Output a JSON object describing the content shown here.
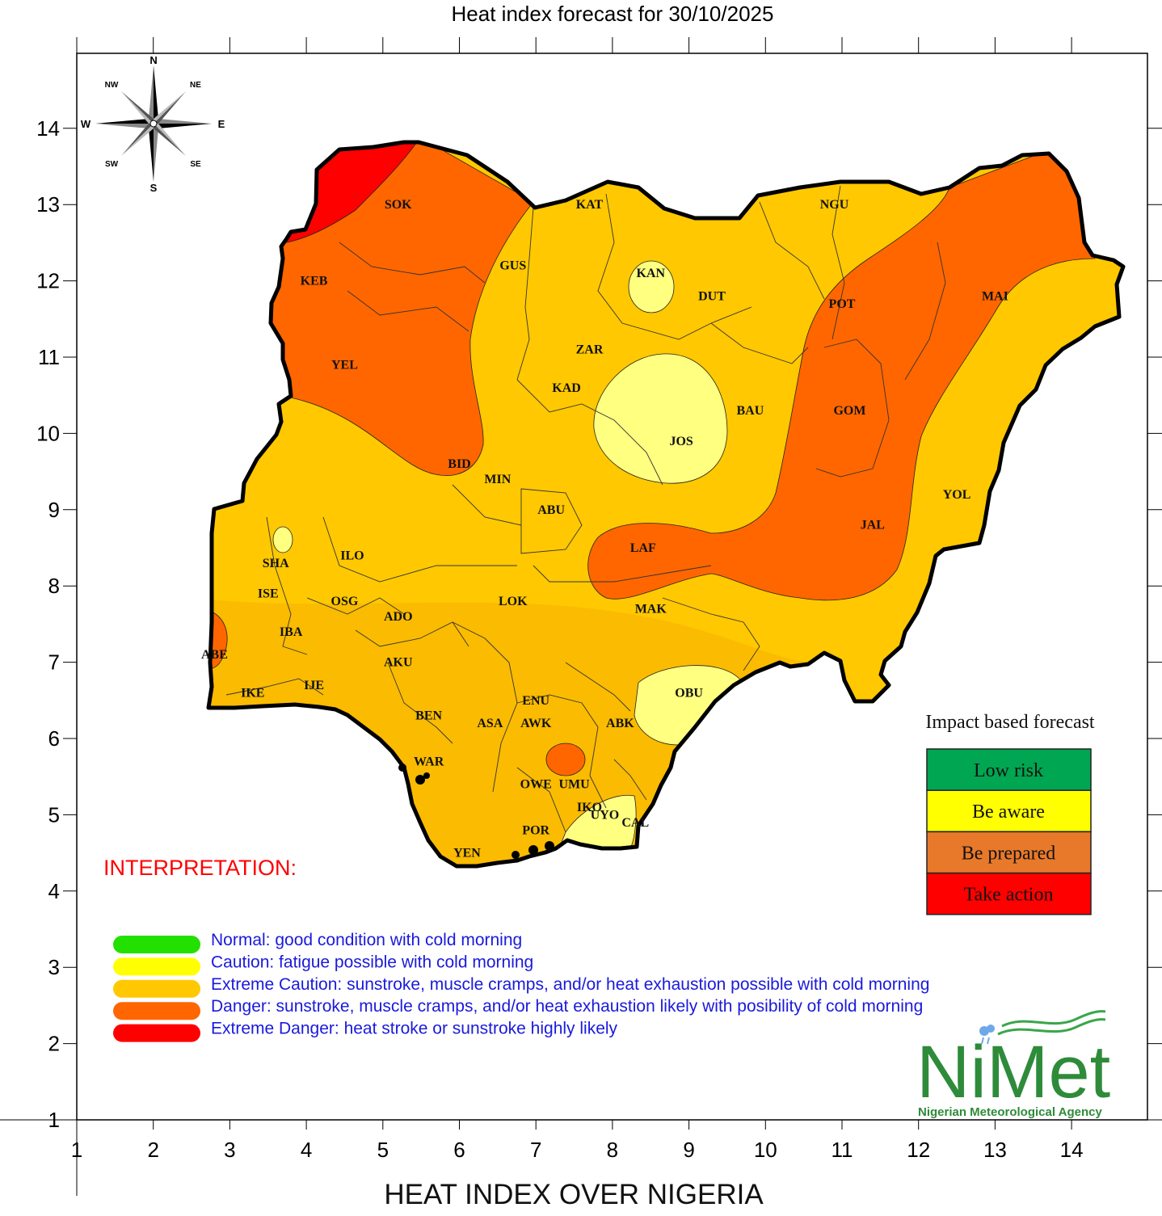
{
  "title": "Heat index forecast for 30/10/2025",
  "footer_title": "HEAT INDEX OVER NIGERIA",
  "axes": {
    "x_ticks": [
      "1",
      "2",
      "3",
      "4",
      "5",
      "6",
      "7",
      "8",
      "9",
      "10",
      "11",
      "12",
      "13",
      "14"
    ],
    "y_ticks": [
      "14",
      "13",
      "12",
      "11",
      "10",
      "9",
      "8",
      "7",
      "6",
      "5",
      "4",
      "3",
      "2",
      "1"
    ],
    "x_range": [
      1,
      15
    ],
    "y_range": [
      1,
      15
    ]
  },
  "compass": {
    "n": "N",
    "s": "S",
    "e": "E",
    "w": "W",
    "ne": "NE",
    "nw": "NW",
    "se": "SE",
    "sw": "SW"
  },
  "colors": {
    "normal": "#22e000",
    "caution": "#ffff60",
    "extreme_caution": "#ffc800",
    "danger": "#ff6600",
    "extreme_danger": "#ff0000",
    "low_risk": "#00a651",
    "be_aware": "#ffff00",
    "be_prepared": "#e8792a",
    "take_action": "#ff0000",
    "legend_text": "#1a1adc",
    "interp_title": "#ff0000",
    "nimet_green": "#2e8b3a"
  },
  "cities": [
    {
      "name": "SOK",
      "lon": 5.2,
      "lat": 13.0
    },
    {
      "name": "KAT",
      "lon": 7.7,
      "lat": 13.0
    },
    {
      "name": "NGU",
      "lon": 10.9,
      "lat": 13.0
    },
    {
      "name": "KEB",
      "lon": 4.1,
      "lat": 12.0
    },
    {
      "name": "GUS",
      "lon": 6.7,
      "lat": 12.2
    },
    {
      "name": "KAN",
      "lon": 8.5,
      "lat": 12.1
    },
    {
      "name": "DUT",
      "lon": 9.3,
      "lat": 11.8
    },
    {
      "name": "POT",
      "lon": 11.0,
      "lat": 11.7
    },
    {
      "name": "MAI",
      "lon": 13.0,
      "lat": 11.8
    },
    {
      "name": "YEL",
      "lon": 4.5,
      "lat": 10.9
    },
    {
      "name": "ZAR",
      "lon": 7.7,
      "lat": 11.1
    },
    {
      "name": "KAD",
      "lon": 7.4,
      "lat": 10.6
    },
    {
      "name": "BAU",
      "lon": 9.8,
      "lat": 10.3
    },
    {
      "name": "GOM",
      "lon": 11.1,
      "lat": 10.3
    },
    {
      "name": "BID",
      "lon": 6.0,
      "lat": 9.6
    },
    {
      "name": "MIN",
      "lon": 6.5,
      "lat": 9.4
    },
    {
      "name": "JOS",
      "lon": 8.9,
      "lat": 9.9
    },
    {
      "name": "YOL",
      "lon": 12.5,
      "lat": 9.2
    },
    {
      "name": "ABU",
      "lon": 7.2,
      "lat": 9.0
    },
    {
      "name": "JAL",
      "lon": 11.4,
      "lat": 8.8
    },
    {
      "name": "LAF",
      "lon": 8.4,
      "lat": 8.5
    },
    {
      "name": "SHA",
      "lon": 3.6,
      "lat": 8.3
    },
    {
      "name": "ILO",
      "lon": 4.6,
      "lat": 8.4
    },
    {
      "name": "ISE",
      "lon": 3.5,
      "lat": 7.9
    },
    {
      "name": "OSG",
      "lon": 4.5,
      "lat": 7.8
    },
    {
      "name": "LOK",
      "lon": 6.7,
      "lat": 7.8
    },
    {
      "name": "MAK",
      "lon": 8.5,
      "lat": 7.7
    },
    {
      "name": "ADO",
      "lon": 5.2,
      "lat": 7.6
    },
    {
      "name": "IBA",
      "lon": 3.8,
      "lat": 7.4
    },
    {
      "name": "ABE",
      "lon": 2.8,
      "lat": 7.1
    },
    {
      "name": "AKU",
      "lon": 5.2,
      "lat": 7.0
    },
    {
      "name": "IJE",
      "lon": 4.1,
      "lat": 6.7
    },
    {
      "name": "IKE",
      "lon": 3.3,
      "lat": 6.6
    },
    {
      "name": "ENU",
      "lon": 7.0,
      "lat": 6.5
    },
    {
      "name": "OBU",
      "lon": 9.0,
      "lat": 6.6
    },
    {
      "name": "BEN",
      "lon": 5.6,
      "lat": 6.3
    },
    {
      "name": "ASA",
      "lon": 6.4,
      "lat": 6.2
    },
    {
      "name": "AWK",
      "lon": 7.0,
      "lat": 6.2
    },
    {
      "name": "ABK",
      "lon": 8.1,
      "lat": 6.2
    },
    {
      "name": "WAR",
      "lon": 5.6,
      "lat": 5.7
    },
    {
      "name": "OWE",
      "lon": 7.0,
      "lat": 5.4
    },
    {
      "name": "UMU",
      "lon": 7.5,
      "lat": 5.4
    },
    {
      "name": "IKO",
      "lon": 7.7,
      "lat": 5.1
    },
    {
      "name": "UYO",
      "lon": 7.9,
      "lat": 5.0
    },
    {
      "name": "CAL",
      "lon": 8.3,
      "lat": 4.9
    },
    {
      "name": "POR",
      "lon": 7.0,
      "lat": 4.8
    },
    {
      "name": "YEN",
      "lon": 6.1,
      "lat": 4.5
    }
  ],
  "interpretation": {
    "title": "INTERPRETATION:",
    "items": [
      {
        "label": "Normal: good condition with cold morning",
        "color": "#22e000"
      },
      {
        "label": "Caution: fatigue possible  with cold morning",
        "color": "#ffff00"
      },
      {
        "label": "Extreme Caution: sunstroke, muscle cramps, and/or heat exhaustion possible  with cold morning",
        "color": "#ffc800"
      },
      {
        "label": "Danger: sunstroke, muscle cramps, and/or heat exhaustion likely with posibility of cold morning",
        "color": "#ff6600"
      },
      {
        "label": "Extreme Danger: heat stroke or sunstroke highly likely",
        "color": "#ff0000"
      }
    ]
  },
  "impact": {
    "title": "Impact based forecast",
    "levels": [
      {
        "label": "Low risk",
        "color": "#00a651"
      },
      {
        "label": "Be aware",
        "color": "#ffff00"
      },
      {
        "label": "Be prepared",
        "color": "#e8792a"
      },
      {
        "label": "Take action",
        "color": "#ff0000"
      }
    ]
  },
  "logo": {
    "name": "NiMet",
    "agency": "Nigerian Meteorological Agency"
  }
}
